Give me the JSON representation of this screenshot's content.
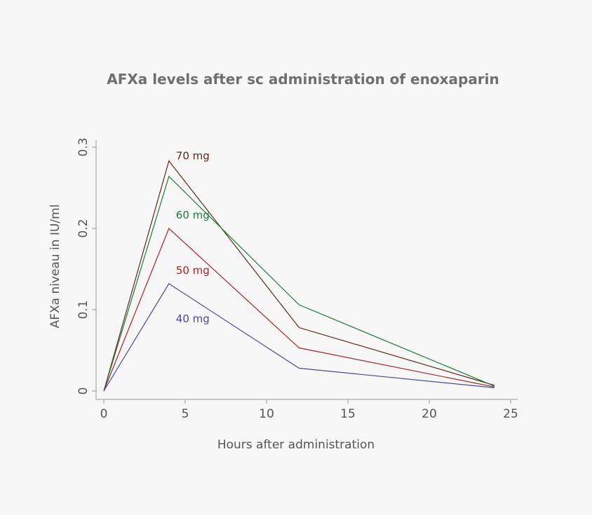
{
  "chart_data": {
    "type": "line",
    "title": "AFXa levels after sc administration of enoxaparin",
    "xlabel": "Hours after administration",
    "ylabel": "AFXa niveau in IU/ml",
    "xlim": [
      0,
      25
    ],
    "ylim": [
      0,
      0.3
    ],
    "xticks": [
      "0",
      "5",
      "10",
      "15",
      "20",
      "25"
    ],
    "yticks": [
      "0",
      "0.1",
      "0.2",
      "0.3"
    ],
    "grid": false,
    "legend": "none",
    "x": [
      0,
      4,
      12,
      24
    ],
    "series": [
      {
        "name": "70 mg",
        "color": "#5c2a1a",
        "values": [
          0,
          0.283,
          0.078,
          0.007
        ]
      },
      {
        "name": "60 mg",
        "color": "#1f7a3a",
        "values": [
          0,
          0.264,
          0.106,
          0.006
        ]
      },
      {
        "name": "50 mg",
        "color": "#b0202a",
        "values": [
          0,
          0.2,
          0.053,
          0.005
        ]
      },
      {
        "name": "40 mg",
        "color": "#4a4a9a",
        "values": [
          0,
          0.132,
          0.028,
          0.004
        ]
      }
    ]
  }
}
